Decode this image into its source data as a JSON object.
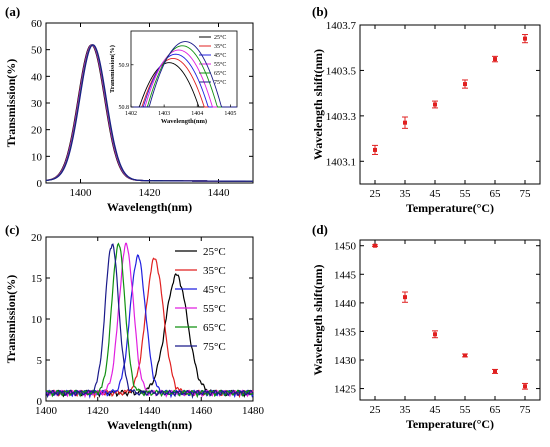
{
  "figure": {
    "panel_labels": [
      "(a)",
      "(b)",
      "(c)",
      "(d)"
    ]
  },
  "chart_data": [
    {
      "panel": "(a)",
      "type": "line",
      "xlabel": "Wavelength(nm)",
      "ylabel": "Transmission(%)",
      "xlim": [
        1390,
        1450
      ],
      "ylim": [
        0,
        60
      ],
      "xticks": [
        1400,
        1420,
        1440
      ],
      "yticks": [
        0,
        10,
        20,
        30,
        40,
        50,
        60
      ],
      "series": [
        {
          "name": "25°C",
          "color": "#000000",
          "center": 1403.15,
          "peak": 50.9,
          "fwhm": 9.0
        },
        {
          "name": "35°C",
          "color": "#e02020",
          "center": 1403.27,
          "peak": 50.9,
          "fwhm": 9.0
        },
        {
          "name": "45°C",
          "color": "#2020e0",
          "center": 1403.35,
          "peak": 50.9,
          "fwhm": 9.0
        },
        {
          "name": "55°C",
          "color": "#e020e0",
          "center": 1403.44,
          "peak": 50.9,
          "fwhm": 9.0
        },
        {
          "name": "65°C",
          "color": "#109010",
          "center": 1403.55,
          "peak": 50.9,
          "fwhm": 9.0
        },
        {
          "name": "75°C",
          "color": "#1a1a8a",
          "center": 1403.64,
          "peak": 50.9,
          "fwhm": 9.0
        }
      ],
      "inset": {
        "xlabel": "Wavelength(nm)",
        "ylabel": "Transmission(%)",
        "xlim": [
          1402,
          1405.2
        ],
        "ylim": [
          50.8,
          50.98
        ],
        "xticks": [
          1402,
          1403,
          1404,
          1405
        ],
        "yticks": [
          50.8,
          50.9
        ],
        "curves": [
          {
            "name": "25°C",
            "color": "#000000",
            "center": 1403.15,
            "peak": 50.905
          },
          {
            "name": "35°C",
            "color": "#e02020",
            "center": 1403.27,
            "peak": 50.915
          },
          {
            "name": "45°C",
            "color": "#2020e0",
            "center": 1403.35,
            "peak": 50.925
          },
          {
            "name": "55°C",
            "color": "#e020e0",
            "center": 1403.44,
            "peak": 50.935
          },
          {
            "name": "65°C",
            "color": "#109010",
            "center": 1403.55,
            "peak": 50.945
          },
          {
            "name": "75°C",
            "color": "#1a1a8a",
            "center": 1403.64,
            "peak": 50.955
          }
        ]
      }
    },
    {
      "panel": "(b)",
      "type": "scatter",
      "xlabel": "Temperature(°C)",
      "ylabel": "Wavelength shift(nm)",
      "xlim": [
        20,
        80
      ],
      "ylim": [
        1403.0,
        1403.7
      ],
      "xticks": [
        25,
        35,
        45,
        55,
        65,
        75
      ],
      "yticks": [
        1403.1,
        1403.3,
        1403.5,
        1403.7
      ],
      "color": "#e02020",
      "points": [
        {
          "x": 25,
          "y": 1403.15,
          "err": 0.02
        },
        {
          "x": 35,
          "y": 1403.27,
          "err": 0.025
        },
        {
          "x": 45,
          "y": 1403.35,
          "err": 0.015
        },
        {
          "x": 55,
          "y": 1403.44,
          "err": 0.018
        },
        {
          "x": 65,
          "y": 1403.55,
          "err": 0.012
        },
        {
          "x": 75,
          "y": 1403.64,
          "err": 0.018
        }
      ]
    },
    {
      "panel": "(c)",
      "type": "line",
      "xlabel": "Wavelength(nm)",
      "ylabel": "Transmission(%)",
      "xlim": [
        1400,
        1480
      ],
      "ylim": [
        0,
        20
      ],
      "xticks": [
        1400,
        1420,
        1440,
        1460,
        1480
      ],
      "yticks": [
        0,
        5,
        10,
        15,
        20
      ],
      "legend_position": "top-right",
      "series": [
        {
          "name": "25°C",
          "color": "#000000",
          "center": 1450.5,
          "peak": 14.3,
          "fwhm": 10.0
        },
        {
          "name": "35°C",
          "color": "#e02020",
          "center": 1442.0,
          "peak": 16.3,
          "fwhm": 8.0
        },
        {
          "name": "45°C",
          "color": "#2020e0",
          "center": 1435.5,
          "peak": 16.6,
          "fwhm": 7.0
        },
        {
          "name": "55°C",
          "color": "#e020e0",
          "center": 1431.0,
          "peak": 18.0,
          "fwhm": 6.5
        },
        {
          "name": "65°C",
          "color": "#109010",
          "center": 1428.0,
          "peak": 18.1,
          "fwhm": 6.0
        },
        {
          "name": "75°C",
          "color": "#1a1a8a",
          "center": 1425.5,
          "peak": 18.2,
          "fwhm": 6.0
        }
      ]
    },
    {
      "panel": "(d)",
      "type": "scatter",
      "xlabel": "Temperature(°C)",
      "ylabel": "Wavelength shift(nm)",
      "xlim": [
        20,
        80
      ],
      "ylim": [
        1423,
        1451
      ],
      "xticks": [
        25,
        35,
        45,
        55,
        65,
        75
      ],
      "yticks": [
        1425,
        1430,
        1435,
        1440,
        1445,
        1450
      ],
      "color": "#e02020",
      "points": [
        {
          "x": 25,
          "y": 1450.0,
          "err": 0.15
        },
        {
          "x": 35,
          "y": 1441.0,
          "err": 0.9
        },
        {
          "x": 45,
          "y": 1434.5,
          "err": 0.6
        },
        {
          "x": 55,
          "y": 1430.8,
          "err": 0.25
        },
        {
          "x": 65,
          "y": 1428.0,
          "err": 0.35
        },
        {
          "x": 75,
          "y": 1425.4,
          "err": 0.5
        }
      ]
    }
  ]
}
